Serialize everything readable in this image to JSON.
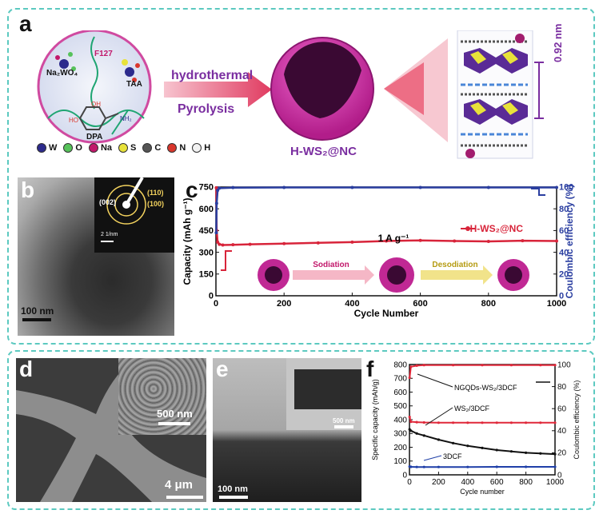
{
  "panel_a": {
    "label": "a",
    "molecules": {
      "na2wo4": "Na₂WO₄",
      "f127": "F127",
      "taa": "TAA",
      "dpa": "DPA",
      "oh": "OH",
      "ho": "HO",
      "nh2": "NH₂"
    },
    "process_top": "hydrothermal",
    "process_bottom": "Pyrolysis",
    "product_label": "H-WS₂@NC",
    "interlayer": "0.92 nm",
    "legend": [
      {
        "symbol": "W",
        "color": "#2c2a8c"
      },
      {
        "symbol": "O",
        "color": "#56c25a"
      },
      {
        "symbol": "Na",
        "color": "#c2186b"
      },
      {
        "symbol": "S",
        "color": "#e8e23a"
      },
      {
        "symbol": "C",
        "color": "#555555"
      },
      {
        "symbol": "N",
        "color": "#d9362c"
      },
      {
        "symbol": "H",
        "color": "#f2f2f2"
      }
    ]
  },
  "panel_b": {
    "label": "b",
    "scale": "100 nm",
    "saed_plane_110": "(110)",
    "saed_plane_100": "(100)",
    "saed_plane_002": "(002)",
    "saed_scale": "2 1/nm"
  },
  "panel_c": {
    "label": "c",
    "rate_label": "1 A g⁻¹",
    "sodiation": "Sodiation",
    "desodiation": "Desodiation",
    "chart_data": {
      "type": "line",
      "xlabel": "Cycle Number",
      "ylabel": "Capacity (mAh g⁻¹)",
      "y2label": "Coulombic efficiency (%)",
      "xlim": [
        0,
        1000
      ],
      "ylim": [
        0,
        750
      ],
      "y2lim": [
        0,
        100
      ],
      "xticks": [
        0,
        200,
        400,
        600,
        800,
        1000
      ],
      "yticks": [
        0,
        150,
        300,
        450,
        600,
        750
      ],
      "y2ticks": [
        0,
        20,
        40,
        60,
        80,
        100
      ],
      "series": [
        {
          "name": "H-WS₂@NC",
          "color": "#d8243a",
          "axis": "left",
          "x": [
            1,
            2,
            5,
            10,
            20,
            50,
            100,
            200,
            300,
            400,
            500,
            600,
            700,
            800,
            900,
            1000
          ],
          "values": [
            745,
            450,
            370,
            355,
            350,
            352,
            355,
            360,
            365,
            370,
            378,
            382,
            378,
            375,
            380,
            378
          ]
        },
        {
          "name": "",
          "color": "#2a3ea0",
          "axis": "right",
          "x": [
            1,
            2,
            5,
            10,
            50,
            200,
            400,
            600,
            800,
            1000
          ],
          "values": [
            58,
            85,
            97,
            99,
            99.5,
            99.6,
            99.6,
            99.6,
            99.6,
            99.6
          ]
        }
      ]
    }
  },
  "panel_d": {
    "label": "d",
    "scale_main": "4 μm",
    "scale_inset": "500 nm"
  },
  "panel_e": {
    "label": "e",
    "scale_main": "100 nm",
    "scale_inset": "500 nm"
  },
  "panel_f": {
    "label": "f",
    "annotations": {
      "ngqds": "NGQDs-WS₂/3DCF",
      "ws2": "WS₂/3DCF",
      "dcf": "3DCF"
    },
    "chart_data": {
      "type": "scatter",
      "xlabel": "Cycle number",
      "ylabel": "Specific capacity (mAh/g)",
      "y2label": "Coulombic efficiency (%)",
      "xlim": [
        0,
        1000
      ],
      "ylim": [
        0,
        800
      ],
      "y2lim": [
        0,
        100
      ],
      "xticks": [
        0,
        200,
        400,
        600,
        800,
        1000
      ],
      "yticks": [
        0,
        100,
        200,
        300,
        400,
        500,
        600,
        700,
        800
      ],
      "y2ticks": [
        0,
        20,
        40,
        60,
        80,
        100
      ],
      "series": [
        {
          "name": "NGQDs-WS₂/3DCF",
          "color": "#e0283a",
          "axis": "left",
          "x": [
            1,
            10,
            50,
            100,
            200,
            300,
            400,
            500,
            600,
            700,
            800,
            900,
            1000
          ],
          "values": [
            420,
            385,
            382,
            380,
            378,
            378,
            378,
            378,
            378,
            378,
            378,
            378,
            378
          ]
        },
        {
          "name": "WS₂/3DCF",
          "color": "#111111",
          "axis": "left",
          "x": [
            1,
            10,
            50,
            100,
            200,
            300,
            400,
            500,
            600,
            700,
            800,
            900,
            1000
          ],
          "values": [
            330,
            320,
            300,
            285,
            255,
            230,
            210,
            195,
            180,
            170,
            160,
            155,
            150
          ]
        },
        {
          "name": "3DCF",
          "color": "#1f3fa8",
          "axis": "left",
          "x": [
            1,
            10,
            50,
            100,
            200,
            400,
            600,
            800,
            1000
          ],
          "values": [
            60,
            58,
            57,
            57,
            57,
            57,
            58,
            58,
            58
          ]
        },
        {
          "name": "",
          "color": "#e0283a",
          "axis": "right",
          "x": [
            1,
            10,
            50,
            100,
            300,
            500,
            700,
            900,
            1000
          ],
          "values": [
            88,
            98,
            99,
            99.5,
            99.5,
            99.5,
            99.5,
            99.5,
            99.5
          ]
        }
      ]
    }
  }
}
